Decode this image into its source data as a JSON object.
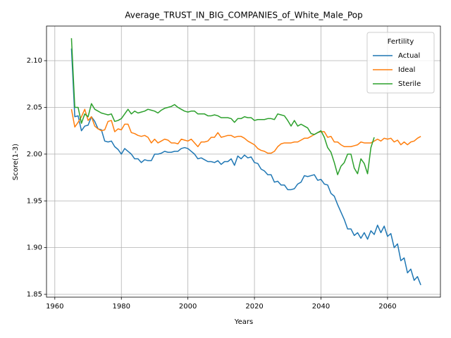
{
  "chart_data": {
    "type": "line",
    "title": "Average_TRUST_IN_BIG_COMPANIES_of_White_Male_Pop",
    "xlabel": "Years",
    "ylabel": "Score(1-3)",
    "legend_title": "Fertility",
    "legend_loc": "upper right",
    "grid": true,
    "xlim": [
      1957.5,
      2075.9
    ],
    "xticks": [
      1960,
      1980,
      2000,
      2020,
      2040,
      2060
    ],
    "ylim": [
      1.847,
      2.137
    ],
    "yticks": [
      {
        "value": 1.85,
        "label": "1.85"
      },
      {
        "value": 1.9,
        "label": "1.90"
      },
      {
        "value": 1.95,
        "label": "1.95"
      },
      {
        "value": 2.0,
        "label": "2.00"
      },
      {
        "value": 2.05,
        "label": "2.05"
      },
      {
        "value": 2.1,
        "label": "2.10"
      }
    ],
    "x": [
      1965,
      1966,
      1967,
      1968,
      1969,
      1970,
      1971,
      1972,
      1973,
      1974,
      1975,
      1976,
      1977,
      1978,
      1979,
      1980,
      1981,
      1982,
      1983,
      1984,
      1985,
      1986,
      1987,
      1988,
      1989,
      1990,
      1991,
      1992,
      1993,
      1994,
      1995,
      1996,
      1997,
      1998,
      1999,
      2000,
      2001,
      2002,
      2003,
      2004,
      2005,
      2006,
      2007,
      2008,
      2009,
      2010,
      2011,
      2012,
      2013,
      2014,
      2015,
      2016,
      2017,
      2018,
      2019,
      2020,
      2021,
      2022,
      2023,
      2024,
      2025,
      2026,
      2027,
      2028,
      2029,
      2030,
      2031,
      2032,
      2033,
      2034,
      2035,
      2036,
      2037,
      2038,
      2039,
      2040,
      2041,
      2042,
      2043,
      2044,
      2045,
      2046,
      2047,
      2048,
      2049,
      2050,
      2051,
      2052,
      2053,
      2054,
      2055,
      2056,
      2057,
      2058,
      2059,
      2060,
      2061,
      2062,
      2063,
      2064,
      2065,
      2066,
      2067,
      2068,
      2069,
      2070
    ],
    "series": [
      {
        "name": "Actual",
        "color": "#1f77b4",
        "values": [
          2.113,
          2.04,
          2.041,
          2.025,
          2.03,
          2.031,
          2.04,
          2.035,
          2.027,
          2.026,
          2.014,
          2.013,
          2.014,
          2.008,
          2.005,
          2.0,
          2.006,
          2.003,
          2.0,
          1.995,
          1.995,
          1.991,
          1.994,
          1.993,
          1.993,
          2.0,
          2.0,
          2.001,
          2.003,
          2.002,
          2.002,
          2.003,
          2.003,
          2.006,
          2.007,
          2.006,
          2.003,
          2.0,
          1.995,
          1.996,
          1.994,
          1.992,
          1.992,
          1.991,
          1.993,
          1.989,
          1.992,
          1.992,
          1.995,
          1.988,
          1.998,
          1.995,
          1.999,
          1.996,
          1.997,
          1.991,
          1.99,
          1.984,
          1.982,
          1.978,
          1.978,
          1.97,
          1.971,
          1.967,
          1.967,
          1.962,
          1.962,
          1.963,
          1.968,
          1.97,
          1.977,
          1.976,
          1.977,
          1.978,
          1.972,
          1.973,
          1.968,
          1.967,
          1.958,
          1.955,
          1.946,
          1.938,
          1.93,
          1.92,
          1.92,
          1.913,
          1.916,
          1.91,
          1.916,
          1.909,
          1.918,
          1.914,
          1.924,
          1.916,
          1.923,
          1.912,
          1.915,
          1.9,
          1.904,
          1.886,
          1.889,
          1.873,
          1.877,
          1.865,
          1.869,
          1.86
        ]
      },
      {
        "name": "Ideal",
        "color": "#ff7f0e",
        "values": [
          2.048,
          2.029,
          2.034,
          2.04,
          2.048,
          2.036,
          2.04,
          2.03,
          2.027,
          2.025,
          2.026,
          2.035,
          2.036,
          2.024,
          2.027,
          2.026,
          2.032,
          2.032,
          2.023,
          2.022,
          2.02,
          2.019,
          2.02,
          2.018,
          2.012,
          2.016,
          2.012,
          2.014,
          2.016,
          2.015,
          2.012,
          2.012,
          2.011,
          2.016,
          2.015,
          2.014,
          2.016,
          2.012,
          2.008,
          2.013,
          2.013,
          2.014,
          2.018,
          2.018,
          2.023,
          2.018,
          2.019,
          2.02,
          2.02,
          2.018,
          2.019,
          2.019,
          2.017,
          2.014,
          2.012,
          2.01,
          2.006,
          2.004,
          2.003,
          2.001,
          2.001,
          2.003,
          2.008,
          2.011,
          2.012,
          2.012,
          2.012,
          2.013,
          2.013,
          2.015,
          2.017,
          2.017,
          2.019,
          2.021,
          2.023,
          2.024,
          2.024,
          2.018,
          2.019,
          2.013,
          2.013,
          2.01,
          2.008,
          2.008,
          2.008,
          2.009,
          2.01,
          2.013,
          2.012,
          2.012,
          2.012,
          2.014,
          2.016,
          2.014,
          2.017,
          2.016,
          2.017,
          2.013,
          2.015,
          2.01,
          2.013,
          2.01,
          2.013,
          2.014,
          2.017,
          2.019
        ]
      },
      {
        "name": "Sterile",
        "color": "#2ca02c",
        "values": [
          2.124,
          2.05,
          2.05,
          2.033,
          2.043,
          2.04,
          2.054,
          2.048,
          2.046,
          2.044,
          2.043,
          2.042,
          2.043,
          2.035,
          2.036,
          2.038,
          2.043,
          2.048,
          2.043,
          2.046,
          2.044,
          2.045,
          2.046,
          2.048,
          2.047,
          2.046,
          2.044,
          2.047,
          2.049,
          2.05,
          2.051,
          2.053,
          2.05,
          2.048,
          2.046,
          2.045,
          2.046,
          2.046,
          2.043,
          2.043,
          2.043,
          2.041,
          2.041,
          2.042,
          2.041,
          2.039,
          2.039,
          2.039,
          2.038,
          2.034,
          2.038,
          2.038,
          2.04,
          2.039,
          2.039,
          2.036,
          2.037,
          2.037,
          2.037,
          2.038,
          2.038,
          2.037,
          2.043,
          2.042,
          2.041,
          2.036,
          2.03,
          2.036,
          2.03,
          2.032,
          2.03,
          2.028,
          2.022,
          2.021,
          2.023,
          2.025,
          2.018,
          2.007,
          2.002,
          1.991,
          1.978,
          1.987,
          1.991,
          2.0,
          2.0,
          1.985,
          1.979,
          1.995,
          1.99,
          1.979,
          2.007,
          2.018,
          null,
          null,
          null,
          null,
          null,
          null,
          null,
          null,
          null,
          null,
          null,
          null,
          null,
          null
        ]
      }
    ]
  }
}
